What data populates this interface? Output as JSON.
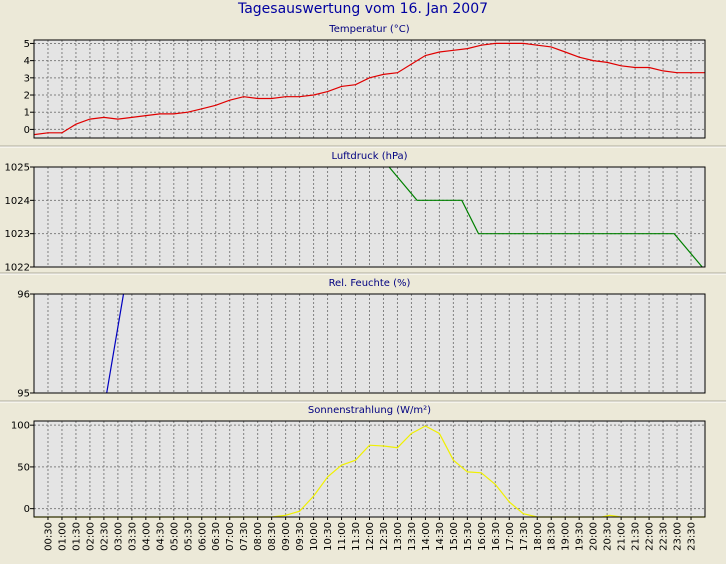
{
  "title": "Tagesauswertung vom 16. Jan 2007",
  "colors": {
    "background": "#ece9d8",
    "plot_background": "#e4e4e4",
    "grid": "#808080",
    "title": "#0000a0",
    "panel_title": "#000080"
  },
  "time_labels": [
    "00:30",
    "01:00",
    "01:30",
    "02:00",
    "02:30",
    "03:00",
    "03:30",
    "04:00",
    "04:30",
    "05:00",
    "05:30",
    "06:00",
    "06:30",
    "07:00",
    "07:30",
    "08:00",
    "08:30",
    "09:00",
    "09:30",
    "10:00",
    "10:30",
    "11:00",
    "11:30",
    "12:00",
    "12:30",
    "13:00",
    "13:30",
    "14:00",
    "14:30",
    "15:00",
    "15:30",
    "16:00",
    "16:30",
    "17:00",
    "17:30",
    "18:00",
    "18:30",
    "19:00",
    "19:30",
    "20:00",
    "20:30",
    "21:00",
    "21:30",
    "22:00",
    "22:30",
    "23:00",
    "23:30"
  ],
  "chart_data": [
    {
      "type": "line",
      "title": "Temperatur (°C)",
      "xlabel": "",
      "ylabel": "",
      "ylim": [
        -0.5,
        5.2
      ],
      "yticks": [
        0,
        1,
        2,
        3,
        4,
        5
      ],
      "grid": true,
      "color": "#e00000",
      "x_unit": "hours",
      "x": [
        0,
        0.5,
        1,
        1.5,
        2,
        2.5,
        3,
        3.5,
        4,
        4.5,
        5,
        5.5,
        6,
        6.5,
        7,
        7.5,
        8,
        8.5,
        9,
        9.5,
        10,
        10.5,
        11,
        11.5,
        12,
        12.5,
        13,
        13.5,
        14,
        14.5,
        15,
        15.5,
        16,
        16.5,
        17,
        17.5,
        18,
        18.5,
        19,
        19.5,
        20,
        20.5,
        21,
        21.5,
        22,
        22.5,
        23,
        23.5,
        24
      ],
      "values": [
        -0.3,
        -0.2,
        -0.2,
        0.3,
        0.6,
        0.7,
        0.6,
        0.7,
        0.8,
        0.9,
        0.9,
        1.0,
        1.2,
        1.4,
        1.7,
        1.9,
        1.8,
        1.8,
        1.9,
        1.9,
        2.0,
        2.2,
        2.5,
        2.6,
        3.0,
        3.2,
        3.3,
        3.8,
        4.3,
        4.5,
        4.6,
        4.7,
        4.9,
        5.0,
        5.0,
        5.0,
        4.9,
        4.8,
        4.5,
        4.2,
        4.0,
        3.9,
        3.7,
        3.6,
        3.6,
        3.4,
        3.3,
        3.3,
        3.3
      ]
    },
    {
      "type": "line",
      "title": "Luftdruck (hPa)",
      "xlabel": "",
      "ylabel": "",
      "ylim": [
        1022,
        1025
      ],
      "yticks": [
        1022,
        1023,
        1024,
        1025
      ],
      "grid": true,
      "color": "#008000",
      "x_unit": "hours",
      "x": [
        12.7,
        13.7,
        15.3,
        15.9,
        22.9,
        23.9
      ],
      "values": [
        1025,
        1024,
        1024,
        1023,
        1023,
        1022
      ]
    },
    {
      "type": "line",
      "title": "Rel. Feuchte (%)",
      "xlabel": "",
      "ylabel": "",
      "ylim": [
        95,
        96
      ],
      "yticks": [
        95,
        96
      ],
      "grid": true,
      "color": "#0000c0",
      "x_unit": "hours",
      "x": [
        2.6,
        3.2
      ],
      "values": [
        95,
        96
      ]
    },
    {
      "type": "line",
      "title": "Sonnenstrahlung (W/m²)",
      "xlabel": "",
      "ylabel": "",
      "ylim": [
        -10,
        105
      ],
      "yticks": [
        0,
        50,
        100
      ],
      "grid": true,
      "color": "#f0f000",
      "x_unit": "hours",
      "x": [
        0,
        8.5,
        9,
        9.5,
        10,
        10.5,
        11,
        11.5,
        12,
        12.5,
        13,
        13.5,
        14,
        14.5,
        15,
        15.5,
        16,
        16.5,
        17,
        17.5,
        18,
        20.3,
        20.6,
        21,
        24
      ],
      "values": [
        -10,
        -10,
        -8,
        -3,
        15,
        38,
        52,
        58,
        76,
        75,
        73,
        90,
        99,
        90,
        58,
        44,
        43,
        29,
        8,
        -6,
        -10,
        -10,
        -8,
        -10,
        -10
      ]
    }
  ]
}
